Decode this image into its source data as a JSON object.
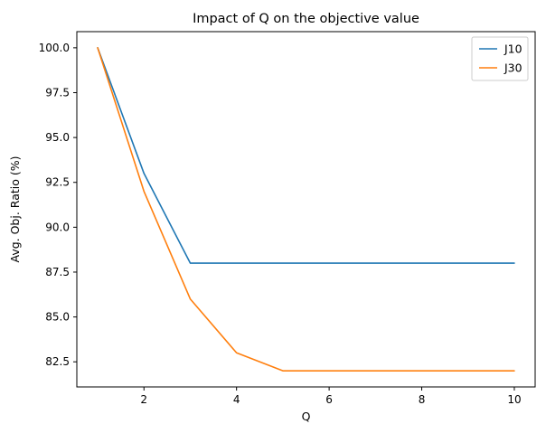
{
  "chart_data": {
    "type": "line",
    "title": "Impact of Q on the objective value",
    "xlabel": "Q",
    "ylabel": "Avg. Obj. Ratio (%)",
    "x": [
      1,
      2,
      3,
      4,
      5,
      6,
      7,
      8,
      9,
      10
    ],
    "xlim": [
      0.55,
      10.45
    ],
    "ylim": [
      81.1,
      100.9
    ],
    "xticks": [
      2,
      4,
      6,
      8,
      10
    ],
    "xtick_labels": [
      "2",
      "4",
      "6",
      "8",
      "10"
    ],
    "yticks": [
      82.5,
      85.0,
      87.5,
      90.0,
      92.5,
      95.0,
      97.5,
      100.0
    ],
    "ytick_labels": [
      "82.5",
      "85.0",
      "87.5",
      "90.0",
      "92.5",
      "95.0",
      "97.5",
      "100.0"
    ],
    "grid": false,
    "legend_position": "top-right",
    "series": [
      {
        "name": "J10",
        "color": "#1f77b4",
        "values": [
          100.0,
          93.0,
          88.0,
          88.0,
          88.0,
          88.0,
          88.0,
          88.0,
          88.0,
          88.0
        ]
      },
      {
        "name": "J30",
        "color": "#ff7f0e",
        "values": [
          100.0,
          92.0,
          86.0,
          83.0,
          82.0,
          82.0,
          82.0,
          82.0,
          82.0,
          82.0
        ]
      }
    ]
  }
}
